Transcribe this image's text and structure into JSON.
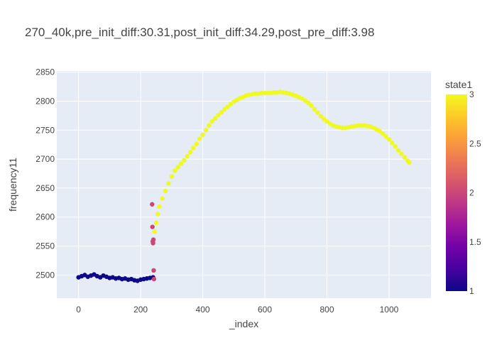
{
  "chart_data": {
    "type": "scatter",
    "title": "270_40k,pre_init_diff:30.31,post_init_diff:34.29,post_pre_diff:3.98",
    "xlabel": "_index",
    "ylabel": "frequency11",
    "xlim": [
      -70,
      1135
    ],
    "ylim": [
      2460,
      2852
    ],
    "x_ticks": [
      0,
      200,
      400,
      600,
      800,
      1000
    ],
    "x_tick_labels": [
      "0",
      "200",
      "400",
      "600",
      "800",
      "1000"
    ],
    "y_ticks": [
      2500,
      2550,
      2600,
      2650,
      2700,
      2750,
      2800,
      2850
    ],
    "y_tick_labels": [
      "2500",
      "2550",
      "2600",
      "2650",
      "2700",
      "2750",
      "2800",
      "2850"
    ],
    "grid": true,
    "color_by": "state1",
    "colorbar": {
      "title": "state1",
      "range": [
        1,
        3
      ],
      "ticks": [
        1,
        1.5,
        2,
        2.5,
        3
      ],
      "tick_labels": [
        "1",
        "1.5",
        "2",
        "2.5",
        "3"
      ],
      "colorscale": [
        "#0d0887",
        "#46039f",
        "#7201a8",
        "#9c179e",
        "#bd3786",
        "#d8576b",
        "#ed7953",
        "#fb9f3a",
        "#fdca26",
        "#f0f921"
      ]
    },
    "colors": {
      "plot_bg": "#e5ecf6",
      "grid": "#ffffff",
      "paper_bg": "#ffffff"
    },
    "series": [
      {
        "state": 1,
        "points": [
          [
            0,
            2496
          ],
          [
            10,
            2498
          ],
          [
            20,
            2500
          ],
          [
            30,
            2497
          ],
          [
            40,
            2499
          ],
          [
            50,
            2501
          ],
          [
            60,
            2498
          ],
          [
            70,
            2496
          ],
          [
            80,
            2499
          ],
          [
            90,
            2497
          ],
          [
            100,
            2495
          ],
          [
            110,
            2496
          ],
          [
            120,
            2494
          ],
          [
            130,
            2495
          ],
          [
            140,
            2493
          ],
          [
            150,
            2494
          ],
          [
            160,
            2492
          ],
          [
            170,
            2493
          ],
          [
            180,
            2491
          ],
          [
            190,
            2490
          ],
          [
            200,
            2492
          ],
          [
            210,
            2493
          ],
          [
            220,
            2494
          ],
          [
            230,
            2495
          ],
          [
            240,
            2496
          ]
        ]
      },
      {
        "state": 2,
        "points": [
          [
            237,
            2622
          ],
          [
            238,
            2583
          ],
          [
            239,
            2558
          ],
          [
            240,
            2555
          ],
          [
            241,
            2561
          ],
          [
            242,
            2508
          ],
          [
            243,
            2493
          ]
        ]
      },
      {
        "state": 3,
        "points": [
          [
            245,
            2575
          ],
          [
            250,
            2590
          ],
          [
            255,
            2605
          ],
          [
            260,
            2618
          ],
          [
            270,
            2632
          ],
          [
            280,
            2645
          ],
          [
            290,
            2658
          ],
          [
            300,
            2670
          ],
          [
            310,
            2680
          ],
          [
            320,
            2686
          ],
          [
            330,
            2692
          ],
          [
            340,
            2698
          ],
          [
            350,
            2705
          ],
          [
            360,
            2712
          ],
          [
            370,
            2719
          ],
          [
            380,
            2726
          ],
          [
            390,
            2735
          ],
          [
            400,
            2742
          ],
          [
            410,
            2750
          ],
          [
            420,
            2758
          ],
          [
            430,
            2765
          ],
          [
            440,
            2770
          ],
          [
            450,
            2776
          ],
          [
            460,
            2781
          ],
          [
            470,
            2786
          ],
          [
            480,
            2790
          ],
          [
            490,
            2795
          ],
          [
            500,
            2799
          ],
          [
            510,
            2802
          ],
          [
            520,
            2805
          ],
          [
            530,
            2807
          ],
          [
            540,
            2810
          ],
          [
            550,
            2811
          ],
          [
            560,
            2812
          ],
          [
            570,
            2813
          ],
          [
            580,
            2813
          ],
          [
            590,
            2814
          ],
          [
            600,
            2814
          ],
          [
            610,
            2814
          ],
          [
            620,
            2814
          ],
          [
            630,
            2815
          ],
          [
            640,
            2815
          ],
          [
            650,
            2816
          ],
          [
            660,
            2815
          ],
          [
            670,
            2814
          ],
          [
            680,
            2813
          ],
          [
            690,
            2811
          ],
          [
            700,
            2809
          ],
          [
            710,
            2807
          ],
          [
            720,
            2804
          ],
          [
            730,
            2801
          ],
          [
            740,
            2797
          ],
          [
            750,
            2792
          ],
          [
            760,
            2786
          ],
          [
            770,
            2780
          ],
          [
            780,
            2774
          ],
          [
            790,
            2769
          ],
          [
            800,
            2765
          ],
          [
            810,
            2761
          ],
          [
            820,
            2758
          ],
          [
            830,
            2756
          ],
          [
            840,
            2755
          ],
          [
            850,
            2754
          ],
          [
            860,
            2754
          ],
          [
            870,
            2755
          ],
          [
            880,
            2756
          ],
          [
            890,
            2757
          ],
          [
            900,
            2758
          ],
          [
            910,
            2758
          ],
          [
            920,
            2758
          ],
          [
            930,
            2757
          ],
          [
            940,
            2756
          ],
          [
            950,
            2754
          ],
          [
            960,
            2751
          ],
          [
            970,
            2748
          ],
          [
            980,
            2744
          ],
          [
            990,
            2739
          ],
          [
            1000,
            2734
          ],
          [
            1010,
            2728
          ],
          [
            1020,
            2722
          ],
          [
            1030,
            2715
          ],
          [
            1040,
            2709
          ],
          [
            1050,
            2703
          ],
          [
            1060,
            2697
          ],
          [
            1065,
            2694
          ]
        ]
      }
    ]
  }
}
